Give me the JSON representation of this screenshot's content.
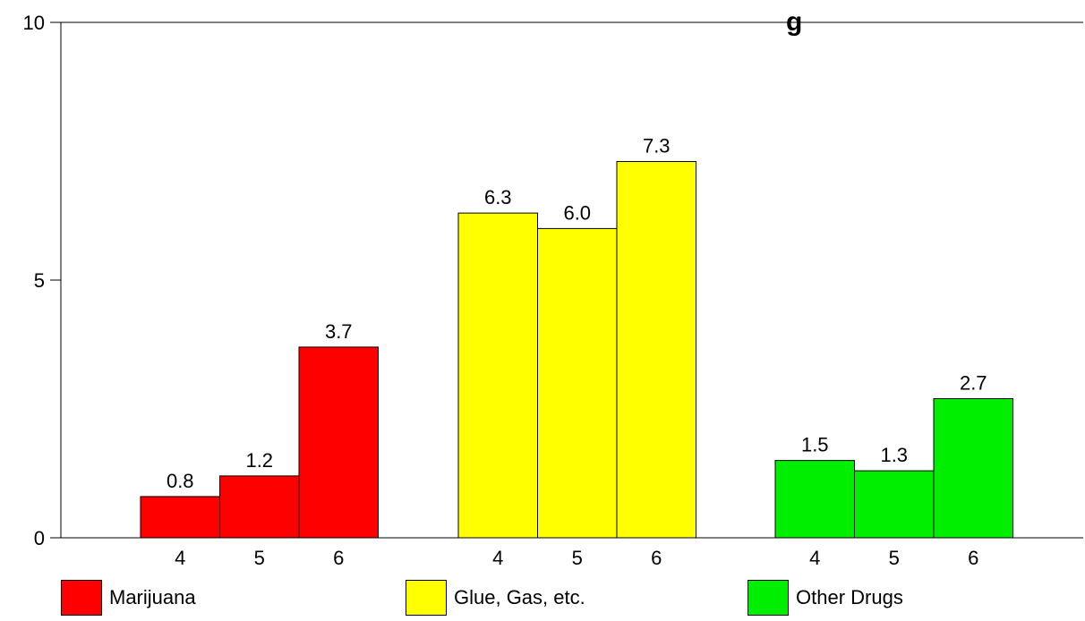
{
  "chart_data": {
    "type": "bar",
    "title": "g",
    "ylim": [
      0,
      10
    ],
    "yticks": [
      0,
      5,
      10
    ],
    "grid": false,
    "legend_position": "bottom",
    "groups": [
      {
        "name": "Marijuana",
        "color": "#ff0000",
        "categories": [
          "4",
          "5",
          "6"
        ],
        "values": [
          0.8,
          1.2,
          3.7
        ],
        "labels": [
          "0.8",
          "1.2",
          "3.7"
        ]
      },
      {
        "name": "Glue, Gas, etc.",
        "color": "#ffff00",
        "categories": [
          "4",
          "5",
          "6"
        ],
        "values": [
          6.3,
          6.0,
          7.3
        ],
        "labels": [
          "6.3",
          "6.0",
          "7.3"
        ]
      },
      {
        "name": "Other Drugs",
        "color": "#00ee00",
        "categories": [
          "4",
          "5",
          "6"
        ],
        "values": [
          1.5,
          1.3,
          2.7
        ],
        "labels": [
          "1.5",
          "1.3",
          "2.7"
        ]
      }
    ]
  }
}
